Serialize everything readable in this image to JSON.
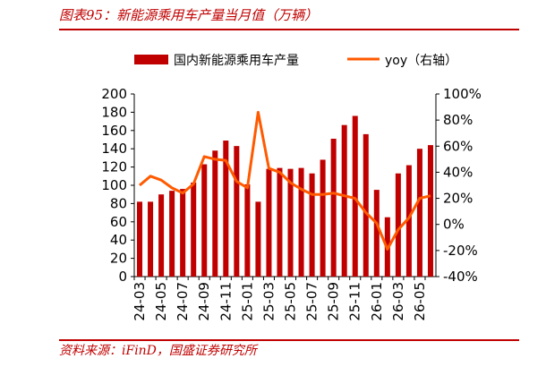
{
  "header": {
    "title": "图表95：新能源乘用车产量当月值（万辆）"
  },
  "footer": {
    "source": "资料来源：iFinD，国盛证券研究所"
  },
  "colors": {
    "bar": "#c00000",
    "line": "#ff5a00",
    "accent": "#c00000"
  },
  "chart_data": {
    "type": "bar",
    "categories": [
      "24-03",
      "24-04",
      "24-05",
      "24-06",
      "24-07",
      "24-08",
      "24-09",
      "24-10",
      "24-11",
      "24-12",
      "25-01",
      "25-02",
      "25-03",
      "25-04",
      "25-05",
      "25-06",
      "25-07",
      "25-08",
      "25-09",
      "25-10",
      "25-11",
      "25-12",
      "26-01",
      "26-02",
      "26-03",
      "26-04",
      "26-05",
      "26-06"
    ],
    "x_tick_labels": [
      "24-03",
      "24-05",
      "24-07",
      "24-09",
      "24-11",
      "25-01",
      "25-03",
      "25-05",
      "25-07",
      "25-09",
      "25-11",
      "26-01",
      "26-03",
      "26-05"
    ],
    "series": [
      {
        "name": "国内新能源乘用车产量",
        "kind": "bar",
        "axis": "left",
        "values": [
          82,
          82,
          90,
          94,
          96,
          103,
          123,
          138,
          149,
          143,
          101,
          82,
          118,
          119,
          118,
          119,
          113,
          128,
          151,
          166,
          176,
          156,
          95,
          65,
          113,
          122,
          140,
          144
        ]
      },
      {
        "name": "yoy（右轴）",
        "kind": "line",
        "axis": "right",
        "values": [
          30,
          37,
          34,
          28,
          24,
          31,
          52,
          50,
          49,
          33,
          28,
          86,
          43,
          40,
          32,
          27,
          23,
          23,
          24,
          22,
          20,
          9,
          1,
          -19,
          -4,
          5,
          20,
          22
        ]
      }
    ],
    "ylim_left": [
      0,
      200
    ],
    "yticks_left": [
      "0",
      "20",
      "40",
      "60",
      "80",
      "100",
      "120",
      "140",
      "160",
      "180",
      "200"
    ],
    "ylim_right": [
      -40,
      100
    ],
    "yticks_right": [
      "-40%",
      "-20%",
      "0%",
      "20%",
      "40%",
      "60%",
      "80%",
      "100%"
    ],
    "legend_position": "top",
    "grid": false
  }
}
